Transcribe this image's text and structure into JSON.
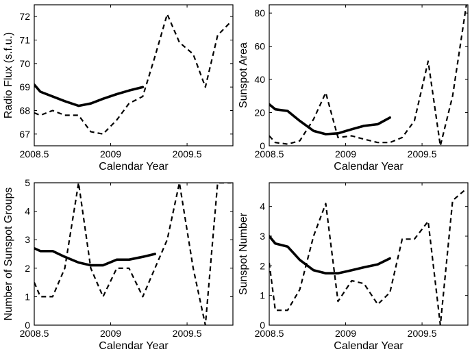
{
  "chart_data": [
    {
      "type": "line",
      "xlabel": "Calendar Year",
      "ylabel": "Radio Flux (s.f.u.)",
      "xlim": [
        2008.5,
        2009.8
      ],
      "ylim": [
        66.5,
        72.5
      ],
      "xticks": [
        2008.5,
        2009,
        2009.5
      ],
      "xtick_labels": [
        "2008.5",
        "2009",
        "2009.5"
      ],
      "yticks": [
        67,
        68,
        69,
        70,
        71,
        72
      ],
      "ytick_labels": [
        "67",
        "68",
        "69",
        "70",
        "71",
        "72"
      ],
      "grid": false,
      "series": [
        {
          "style": "solid",
          "x": [
            2008.5,
            2008.54,
            2008.62,
            2008.7,
            2008.79,
            2008.87,
            2008.95,
            2009.04,
            2009.12,
            2009.21
          ],
          "y": [
            69.1,
            68.8,
            68.6,
            68.4,
            68.2,
            68.3,
            68.5,
            68.7,
            68.85,
            69.0
          ]
        },
        {
          "style": "dashed",
          "x": [
            2008.5,
            2008.54,
            2008.62,
            2008.7,
            2008.79,
            2008.87,
            2008.95,
            2009.04,
            2009.12,
            2009.21,
            2009.29,
            2009.37,
            2009.45,
            2009.54,
            2009.62,
            2009.7,
            2009.79
          ],
          "y": [
            67.9,
            67.8,
            68.0,
            67.8,
            67.8,
            67.1,
            67.0,
            67.6,
            68.3,
            68.6,
            70.3,
            72.1,
            70.9,
            70.4,
            69.0,
            71.2,
            71.8
          ]
        }
      ]
    },
    {
      "type": "line",
      "xlabel": "Calendar Year",
      "ylabel": "Sunspot Area",
      "xlim": [
        2008.5,
        2009.8
      ],
      "ylim": [
        0,
        85
      ],
      "xticks": [
        2008.5,
        2009,
        2009.5
      ],
      "xtick_labels": [
        "2008.5",
        "2009",
        "2009.5"
      ],
      "yticks": [
        0,
        20,
        40,
        60,
        80
      ],
      "ytick_labels": [
        "0",
        "20",
        "40",
        "60",
        "80"
      ],
      "grid": false,
      "series": [
        {
          "style": "solid",
          "x": [
            2008.5,
            2008.54,
            2008.62,
            2008.7,
            2008.79,
            2008.87,
            2008.95,
            2009.04,
            2009.12,
            2009.21,
            2009.29
          ],
          "y": [
            25,
            22,
            21,
            15,
            9,
            7,
            7.5,
            10,
            12,
            13,
            17
          ]
        },
        {
          "style": "dashed",
          "x": [
            2008.5,
            2008.54,
            2008.62,
            2008.7,
            2008.79,
            2008.87,
            2008.95,
            2009.04,
            2009.12,
            2009.21,
            2009.29,
            2009.37,
            2009.45,
            2009.54,
            2009.62,
            2009.7,
            2009.79
          ],
          "y": [
            6,
            2,
            1,
            3,
            16,
            32,
            5,
            6,
            4,
            2,
            2,
            5,
            15,
            51,
            0,
            30,
            85
          ]
        }
      ]
    },
    {
      "type": "line",
      "xlabel": "Calendar Year",
      "ylabel": "Number of Sunspot Groups",
      "xlim": [
        2008.5,
        2009.8
      ],
      "ylim": [
        0,
        5
      ],
      "xticks": [
        2008.5,
        2009,
        2009.5
      ],
      "xtick_labels": [
        "2008.5",
        "2009",
        "2009.5"
      ],
      "yticks": [
        0,
        1,
        2,
        3,
        4,
        5
      ],
      "ytick_labels": [
        "0",
        "1",
        "2",
        "3",
        "4",
        "5"
      ],
      "grid": false,
      "series": [
        {
          "style": "solid",
          "x": [
            2008.5,
            2008.54,
            2008.62,
            2008.7,
            2008.79,
            2008.87,
            2008.95,
            2009.04,
            2009.12,
            2009.21,
            2009.29
          ],
          "y": [
            2.7,
            2.6,
            2.6,
            2.4,
            2.2,
            2.1,
            2.1,
            2.3,
            2.3,
            2.4,
            2.5
          ]
        },
        {
          "style": "dashed",
          "x": [
            2008.5,
            2008.54,
            2008.62,
            2008.7,
            2008.79,
            2008.87,
            2008.95,
            2009.04,
            2009.12,
            2009.21,
            2009.29,
            2009.37,
            2009.45,
            2009.54,
            2009.62,
            2009.7,
            2009.79
          ],
          "y": [
            1.5,
            1.0,
            1.0,
            2.0,
            5.0,
            2.0,
            1.0,
            2.0,
            2.0,
            1.0,
            2.0,
            3.0,
            5.0,
            2.0,
            0.0,
            5.0,
            5.0
          ]
        }
      ]
    },
    {
      "type": "line",
      "xlabel": "Calendar Year",
      "ylabel": "Sunspot Number",
      "xlim": [
        2008.5,
        2009.8
      ],
      "ylim": [
        0,
        4.8
      ],
      "xticks": [
        2008.5,
        2009,
        2009.5
      ],
      "xtick_labels": [
        "2008.5",
        "2009",
        "2009.5"
      ],
      "yticks": [
        0,
        1,
        2,
        3,
        4
      ],
      "ytick_labels": [
        "0",
        "1",
        "2",
        "3",
        "4"
      ],
      "grid": false,
      "series": [
        {
          "style": "solid",
          "x": [
            2008.5,
            2008.54,
            2008.62,
            2008.7,
            2008.79,
            2008.87,
            2008.95,
            2009.04,
            2009.12,
            2009.21,
            2009.29
          ],
          "y": [
            3.0,
            2.75,
            2.65,
            2.2,
            1.85,
            1.75,
            1.75,
            1.85,
            1.95,
            2.05,
            2.25
          ]
        },
        {
          "style": "dashed",
          "x": [
            2008.5,
            2008.54,
            2008.62,
            2008.7,
            2008.79,
            2008.87,
            2008.95,
            2009.04,
            2009.12,
            2009.21,
            2009.29,
            2009.37,
            2009.45,
            2009.54,
            2009.62,
            2009.7,
            2009.79
          ],
          "y": [
            2.1,
            0.5,
            0.5,
            1.2,
            3.0,
            4.1,
            0.8,
            1.5,
            1.4,
            0.7,
            1.1,
            2.9,
            2.9,
            3.5,
            0.0,
            4.2,
            4.6
          ]
        }
      ]
    }
  ]
}
